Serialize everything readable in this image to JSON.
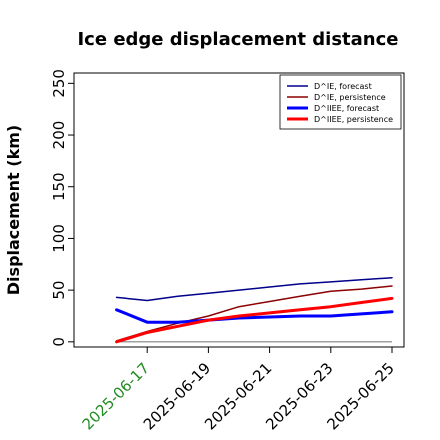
{
  "chart_data": {
    "type": "line",
    "title": "Ice edge displacement distance",
    "ylabel": "Displacement (km)",
    "xlabel": "",
    "ylim": [
      -5,
      260
    ],
    "yticks": [
      0,
      50,
      100,
      150,
      200,
      250
    ],
    "xlim": [
      "2025-06-15",
      "2025-06-25"
    ],
    "x": [
      "2025-06-16",
      "2025-06-17",
      "2025-06-18",
      "2025-06-19",
      "2025-06-20",
      "2025-06-21",
      "2025-06-22",
      "2025-06-23",
      "2025-06-24",
      "2025-06-25"
    ],
    "xticks": [
      {
        "date": "2025-06-17",
        "label": "2025-06-17",
        "color": "#228b22"
      },
      {
        "date": "2025-06-19",
        "label": "2025-06-19",
        "color": "#000000"
      },
      {
        "date": "2025-06-21",
        "label": "2025-06-21",
        "color": "#000000"
      },
      {
        "date": "2025-06-23",
        "label": "2025-06-23",
        "color": "#000000"
      },
      {
        "date": "2025-06-25",
        "label": "2025-06-25",
        "color": "#000000"
      }
    ],
    "reference_line": {
      "value": 0,
      "color": "#808080"
    },
    "legend_position": "top-right",
    "grid": false,
    "series": [
      {
        "name": "D^IE, forecast",
        "color": "#00008b",
        "width": 1.5,
        "values": [
          43,
          40,
          44,
          47,
          50,
          53,
          56,
          58,
          60,
          62
        ]
      },
      {
        "name": "D^IE, persistence",
        "color": "#8b0000",
        "width": 1.5,
        "values": [
          1,
          10,
          18,
          25,
          34,
          39,
          44,
          49,
          51,
          54
        ]
      },
      {
        "name": "D^IIEE, forecast",
        "color": "#0000ff",
        "width": 3,
        "values": [
          31,
          19,
          19,
          21,
          23,
          24,
          25,
          25,
          27,
          29
        ]
      },
      {
        "name": "D^IIEE, persistence",
        "color": "#ff0000",
        "width": 3,
        "values": [
          0,
          9,
          15,
          21,
          25,
          28,
          31,
          34,
          38,
          42
        ]
      }
    ]
  }
}
